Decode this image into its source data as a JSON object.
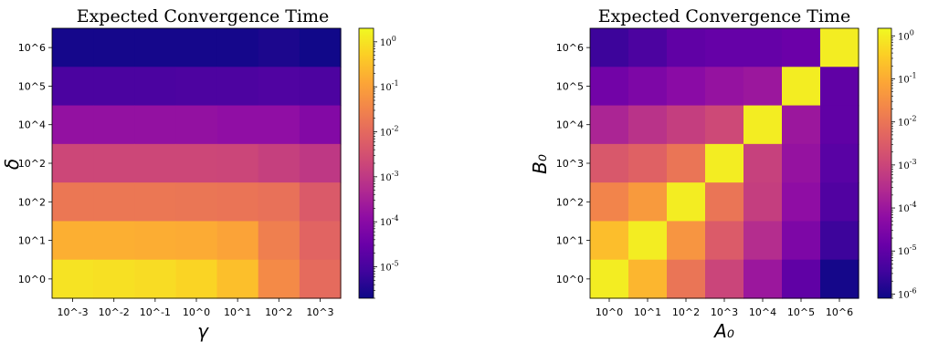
{
  "chart_data": [
    {
      "type": "heatmap",
      "title": "Expected Convergence Time",
      "xlabel": "γ",
      "ylabel": "δ",
      "x_ticks": [
        "10^-3",
        "10^-2",
        "10^-1",
        "10^0",
        "10^1",
        "10^2",
        "10^3"
      ],
      "y_ticks": [
        "10^6",
        "10^5",
        "10^4",
        "10^2",
        "10^2",
        "10^1",
        "10^0"
      ],
      "colormap": "plasma",
      "color_scale": "log",
      "color_range": [
        2e-06,
        2
      ],
      "colorbar_ticks": [
        "10^0",
        "10^-1",
        "10^-2",
        "10^-3",
        "10^-4",
        "10^-5"
      ],
      "values": [
        [
          2.5e-06,
          2.5e-06,
          2.5e-06,
          2.5e-06,
          2.5e-06,
          3e-06,
          2.2e-06
        ],
        [
          1.1e-05,
          1.1e-05,
          1.1e-05,
          1.2e-05,
          1.2e-05,
          1.3e-05,
          1.2e-05
        ],
        [
          0.00015,
          0.00015,
          0.00015,
          0.00015,
          0.00013,
          0.00013,
          8e-05
        ],
        [
          0.002,
          0.002,
          0.002,
          0.002,
          0.0019,
          0.0014,
          0.001
        ],
        [
          0.018,
          0.018,
          0.018,
          0.017,
          0.016,
          0.014,
          0.005
        ],
        [
          0.17,
          0.17,
          0.16,
          0.15,
          0.11,
          0.025,
          0.008
        ],
        [
          1.0,
          0.9,
          0.8,
          0.6,
          0.3,
          0.04,
          0.011
        ]
      ]
    },
    {
      "type": "heatmap",
      "title": "Expected Convergence Time",
      "xlabel": "A₀",
      "ylabel": "B₀",
      "x_ticks": [
        "10^0",
        "10^1",
        "10^2",
        "10^3",
        "10^4",
        "10^5",
        "10^6"
      ],
      "y_ticks": [
        "10^6",
        "10^5",
        "10^4",
        "10^3",
        "10^2",
        "10^1",
        "10^0"
      ],
      "colormap": "plasma",
      "color_scale": "log",
      "color_range": [
        8e-07,
        1.5
      ],
      "colorbar_ticks": [
        "10^0",
        "10^-1",
        "10^-2",
        "10^-3",
        "10^-4",
        "10^-5",
        "10^-6"
      ],
      "values": [
        [
          3e-06,
          5e-06,
          1e-05,
          1.2e-05,
          1.2e-05,
          1.5e-05,
          1.0
        ],
        [
          2e-05,
          3e-05,
          5e-05,
          8e-05,
          0.0001,
          1.0,
          1e-05
        ],
        [
          0.0002,
          0.0004,
          0.0007,
          0.0012,
          1.0,
          0.0001,
          1e-05
        ],
        [
          0.0025,
          0.004,
          0.01,
          1.0,
          0.0008,
          8e-05,
          8e-06
        ],
        [
          0.02,
          0.05,
          1.0,
          0.01,
          0.0007,
          6e-05,
          6e-06
        ],
        [
          0.2,
          1.0,
          0.04,
          0.003,
          0.0003,
          3e-05,
          3e-06
        ],
        [
          1.0,
          0.15,
          0.01,
          0.001,
          0.0001,
          1e-05,
          1e-06
        ]
      ]
    }
  ]
}
